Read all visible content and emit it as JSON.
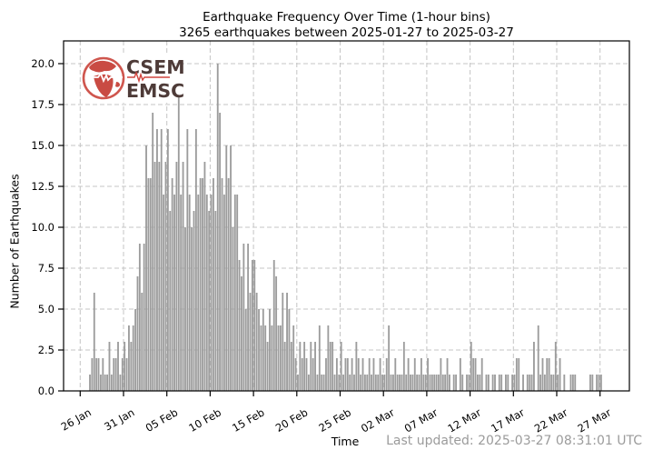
{
  "header": {
    "title_line1": "Earthquake Frequency Over Time (1-hour bins)",
    "title_line2": "3265 earthquakes between 2025-01-27 to 2025-03-27"
  },
  "logo": {
    "line1": "CSEM",
    "line2": "EMSC",
    "globe_color": "#cf564e",
    "land_color": "#c94b43",
    "text_color": "#4e3b38",
    "trace_color": "#d0453e"
  },
  "axes": {
    "y_label": "Number of Earthquakes",
    "x_label": "Time"
  },
  "footer": {
    "last_updated": "Last updated: 2025-03-27 08:31:01 UTC"
  },
  "colors": {
    "bar": "#9c9c9c",
    "grid": "#c4c4c4",
    "spine": "#000000",
    "tick_text": "#000000",
    "muted_text": "#9b9b9b"
  },
  "chart_data": {
    "type": "bar",
    "title": "Earthquake Frequency Over Time (1-hour bins)",
    "subtitle": "3265 earthquakes between 2025-01-27 to 2025-03-27",
    "total_earthquakes": 3265,
    "date_range": [
      "2025-01-27",
      "2025-03-27"
    ],
    "bin_size": "1 hour (rendered as 6-hour envelope bins)",
    "xlabel": "Time",
    "ylabel": "Number of Earthquakes",
    "ylim": [
      0,
      21.4
    ],
    "grid": true,
    "x_tick_labels": [
      "26 Jan",
      "31 Jan",
      "05 Feb",
      "10 Feb",
      "15 Feb",
      "20 Feb",
      "25 Feb",
      "02 Mar",
      "07 Mar",
      "12 Mar",
      "17 Mar",
      "22 Mar",
      "27 Mar"
    ],
    "y_tick_values": [
      0.0,
      2.5,
      5.0,
      7.5,
      10.0,
      12.5,
      15.0,
      17.5,
      20.0
    ],
    "start_day_label": "26 Jan",
    "bins_per_day": 4,
    "values": [
      0,
      0,
      0,
      0,
      1,
      2,
      6,
      2,
      2,
      1,
      2,
      1,
      1,
      3,
      1,
      2,
      2,
      3,
      1,
      2,
      3,
      2,
      4,
      3,
      4,
      5,
      7,
      9,
      6,
      9,
      15,
      13,
      13,
      17,
      14,
      16,
      14,
      16,
      12,
      14,
      16,
      11,
      13,
      12,
      14,
      18,
      12,
      14,
      10,
      16,
      12,
      10,
      11,
      16,
      12,
      13,
      13,
      14,
      12,
      11,
      12,
      13,
      11,
      20,
      17,
      13,
      12,
      15,
      13,
      15,
      10,
      12,
      12,
      8,
      7,
      9,
      5,
      9,
      6,
      8,
      8,
      6,
      5,
      4,
      5,
      4,
      3,
      5,
      4,
      8,
      7,
      4,
      4,
      6,
      3,
      6,
      5,
      3,
      4,
      2,
      1,
      3,
      2,
      3,
      2,
      1,
      3,
      2,
      3,
      1,
      4,
      1,
      1,
      2,
      4,
      3,
      3,
      1,
      2,
      1,
      3,
      1,
      2,
      2,
      1,
      2,
      1,
      3,
      2,
      1,
      2,
      1,
      1,
      2,
      1,
      2,
      1,
      1,
      2,
      1,
      1,
      2,
      4,
      1,
      1,
      2,
      1,
      1,
      1,
      3,
      1,
      2,
      1,
      1,
      2,
      1,
      1,
      2,
      1,
      1,
      2,
      1,
      1,
      1,
      1,
      1,
      2,
      1,
      1,
      2,
      1,
      0,
      1,
      1,
      0,
      2,
      1,
      0,
      1,
      1,
      3,
      2,
      2,
      1,
      1,
      2,
      0,
      1,
      1,
      0,
      1,
      1,
      0,
      1,
      1,
      0,
      1,
      1,
      0,
      1,
      1,
      2,
      2,
      0,
      1,
      0,
      1,
      1,
      1,
      3,
      0,
      4,
      1,
      2,
      1,
      2,
      2,
      1,
      1,
      3,
      1,
      2,
      0,
      1,
      0,
      0,
      1,
      1,
      1,
      0,
      0,
      0,
      0,
      0,
      0,
      1,
      1,
      0,
      1,
      1,
      1,
      0,
      0,
      0
    ]
  }
}
